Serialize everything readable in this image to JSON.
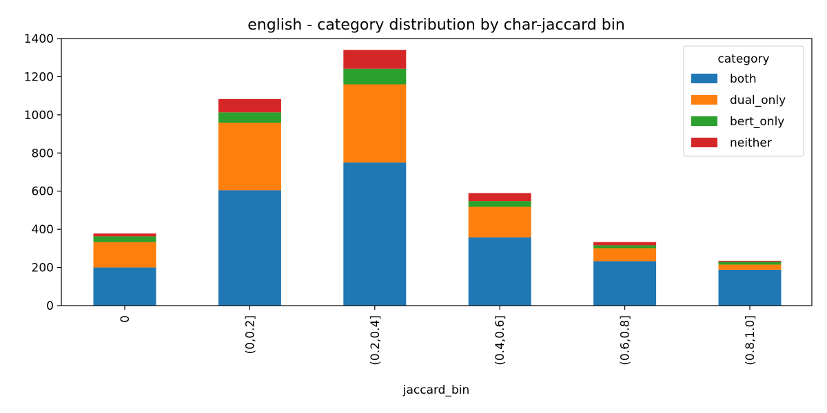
{
  "chart_data": {
    "type": "bar",
    "stacked": true,
    "title": "english - category distribution by char-jaccard bin",
    "xlabel": "jaccard_bin",
    "ylabel": "",
    "ylim": [
      0,
      1400
    ],
    "yticks": [
      0,
      200,
      400,
      600,
      800,
      1000,
      1200,
      1400
    ],
    "categories": [
      "0",
      "(0,0.2]",
      "(0.2,0.4]",
      "(0.4,0.6]",
      "(0.6,0.8]",
      "(0.8,1.0]"
    ],
    "series": [
      {
        "name": "both",
        "color": "#1f77b4",
        "values": [
          200,
          605,
          750,
          358,
          233,
          188
        ]
      },
      {
        "name": "dual_only",
        "color": "#ff7f0e",
        "values": [
          133,
          353,
          410,
          160,
          68,
          27
        ]
      },
      {
        "name": "bert_only",
        "color": "#2ca02c",
        "values": [
          30,
          55,
          82,
          30,
          15,
          15
        ]
      },
      {
        "name": "neither",
        "color": "#d62728",
        "values": [
          15,
          70,
          98,
          42,
          17,
          5
        ]
      }
    ],
    "legend": {
      "title": "category",
      "placement": "top-right"
    },
    "grid": false
  }
}
